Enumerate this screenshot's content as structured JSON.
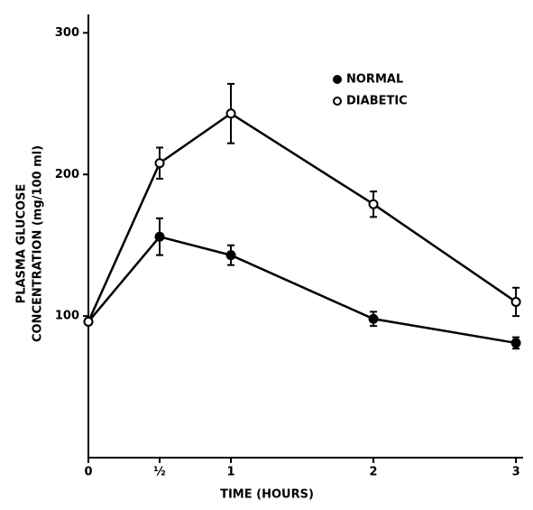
{
  "chart_data": {
    "type": "line",
    "xlabel": "TIME (HOURS)",
    "ylabel": [
      "PLASMA GLUCOSE",
      "CONCENTRATION (mg/100 ml)"
    ],
    "x": [
      0,
      0.5,
      1,
      2,
      3
    ],
    "xlim": [
      0,
      3.05
    ],
    "xticks": [
      0,
      {
        "value": 0.5,
        "label": "½"
      },
      1,
      2,
      3
    ],
    "ylim": [
      0,
      313
    ],
    "yticks": [
      100,
      200,
      300
    ],
    "series": [
      {
        "name": "NORMAL",
        "color": "#000000",
        "marker": "filled",
        "values": [
          96,
          156,
          143,
          98,
          81
        ],
        "errors": [
          null,
          13,
          7,
          5,
          4
        ]
      },
      {
        "name": "DIABETIC",
        "color": "#000000",
        "marker": "open",
        "values": [
          96,
          208,
          243,
          179,
          110
        ],
        "errors": [
          null,
          11,
          21,
          9,
          10
        ]
      }
    ]
  }
}
